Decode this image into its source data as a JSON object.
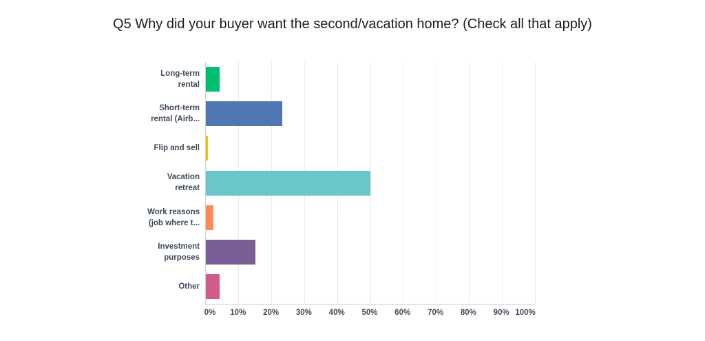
{
  "title": "Q5 Why did your buyer want the second/vacation home? (Check all that apply)",
  "chart_data": {
    "type": "bar",
    "orientation": "horizontal",
    "title": "Q5 Why did your buyer want the second/vacation home? (Check all that apply)",
    "categories": [
      "Long-term rental",
      "Short-term rental (Airb...",
      "Flip and sell",
      "Vacation retreat",
      "Work reasons (job where t...",
      "Investment purposes",
      "Other"
    ],
    "category_lines": [
      [
        "Long-term",
        "rental"
      ],
      [
        "Short-term",
        "rental (Airb..."
      ],
      [
        "Flip and sell"
      ],
      [
        "Vacation",
        "retreat"
      ],
      [
        "Work reasons",
        "(job where t..."
      ],
      [
        "Investment",
        "purposes"
      ],
      [
        "Other"
      ]
    ],
    "values": [
      4.1,
      23.3,
      0.6,
      50.1,
      2.3,
      15.0,
      4.1
    ],
    "bar_colors": [
      "#00bf6f",
      "#5077b4",
      "#f8be00",
      "#6bc6cb",
      "#ff8a54",
      "#7a5f96",
      "#d15c8c"
    ],
    "xlabel": "",
    "ylabel": "",
    "xlim": [
      0,
      100
    ],
    "x_tick_labels": [
      "0%",
      "10%",
      "20%",
      "30%",
      "40%",
      "50%",
      "60%",
      "70%",
      "80%",
      "90%",
      "100%"
    ],
    "grid": "vertical-only",
    "legend": "none"
  },
  "styles": {
    "grid_color": "#e9eaeb",
    "axis_color": "#ccd1d5",
    "label_color": "#3e4a57",
    "title_color": "#1d1d1d",
    "background": "#ffffff"
  }
}
